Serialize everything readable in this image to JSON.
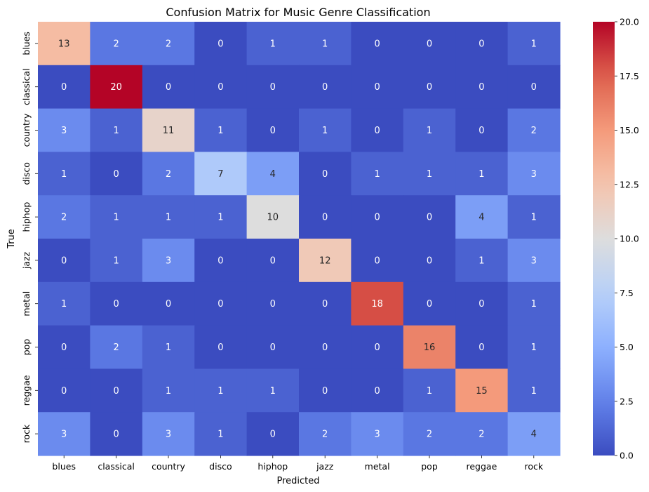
{
  "chart_data": {
    "type": "heatmap",
    "title": "Confusion Matrix for Music Genre Classification",
    "xlabel": "Predicted",
    "ylabel": "True",
    "x_categories": [
      "blues",
      "classical",
      "country",
      "disco",
      "hiphop",
      "jazz",
      "metal",
      "pop",
      "reggae",
      "rock"
    ],
    "y_categories": [
      "blues",
      "classical",
      "country",
      "disco",
      "hiphop",
      "jazz",
      "metal",
      "pop",
      "reggae",
      "rock"
    ],
    "values": [
      [
        13,
        2,
        2,
        0,
        1,
        1,
        0,
        0,
        0,
        1
      ],
      [
        0,
        20,
        0,
        0,
        0,
        0,
        0,
        0,
        0,
        0
      ],
      [
        3,
        1,
        11,
        1,
        0,
        1,
        0,
        1,
        0,
        2
      ],
      [
        1,
        0,
        2,
        7,
        4,
        0,
        1,
        1,
        1,
        3
      ],
      [
        2,
        1,
        1,
        1,
        10,
        0,
        0,
        0,
        4,
        1
      ],
      [
        0,
        1,
        3,
        0,
        0,
        12,
        0,
        0,
        1,
        3
      ],
      [
        1,
        0,
        0,
        0,
        0,
        0,
        18,
        0,
        0,
        1
      ],
      [
        0,
        2,
        1,
        0,
        0,
        0,
        0,
        16,
        0,
        1
      ],
      [
        0,
        0,
        1,
        1,
        1,
        0,
        0,
        1,
        15,
        1
      ],
      [
        3,
        0,
        3,
        1,
        0,
        2,
        3,
        2,
        2,
        4
      ]
    ],
    "colormap": "coolwarm",
    "vmin": 0,
    "vmax": 20,
    "colorbar_ticks": [
      "0.0",
      "2.5",
      "5.0",
      "7.5",
      "10.0",
      "12.5",
      "15.0",
      "17.5",
      "20.0"
    ],
    "annotated": true,
    "grid": false,
    "colorbar_position": "right"
  }
}
